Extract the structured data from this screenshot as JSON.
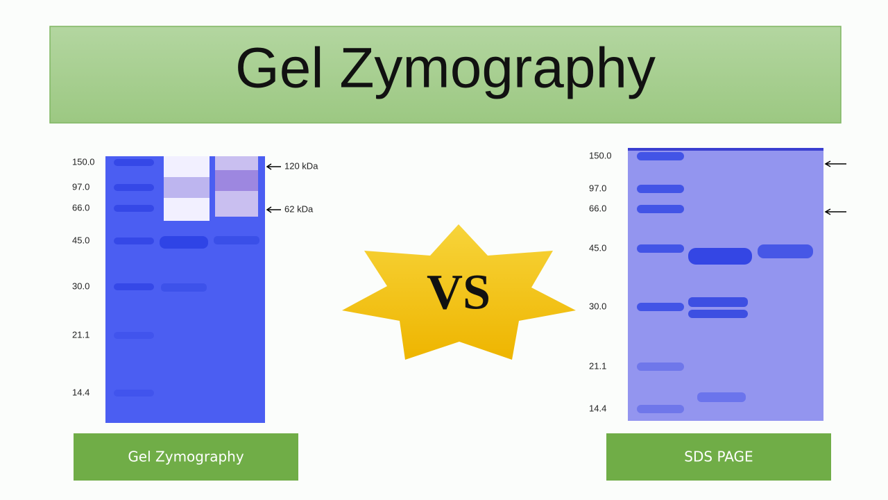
{
  "header": {
    "title": "Gel Zymography"
  },
  "left_gel": {
    "markers": [
      "150.0",
      "97.0",
      "66.0",
      "45.0",
      "30.0",
      "21.1",
      "14.4"
    ],
    "annotations": [
      "120 kDa",
      "62 kDa"
    ],
    "caption": "Gel Zymography"
  },
  "center": {
    "label": "VS"
  },
  "right_gel": {
    "markers": [
      "150.0",
      "97.0",
      "66.0",
      "45.0",
      "30.0",
      "21.1",
      "14.4"
    ],
    "caption": "SDS PAGE"
  }
}
